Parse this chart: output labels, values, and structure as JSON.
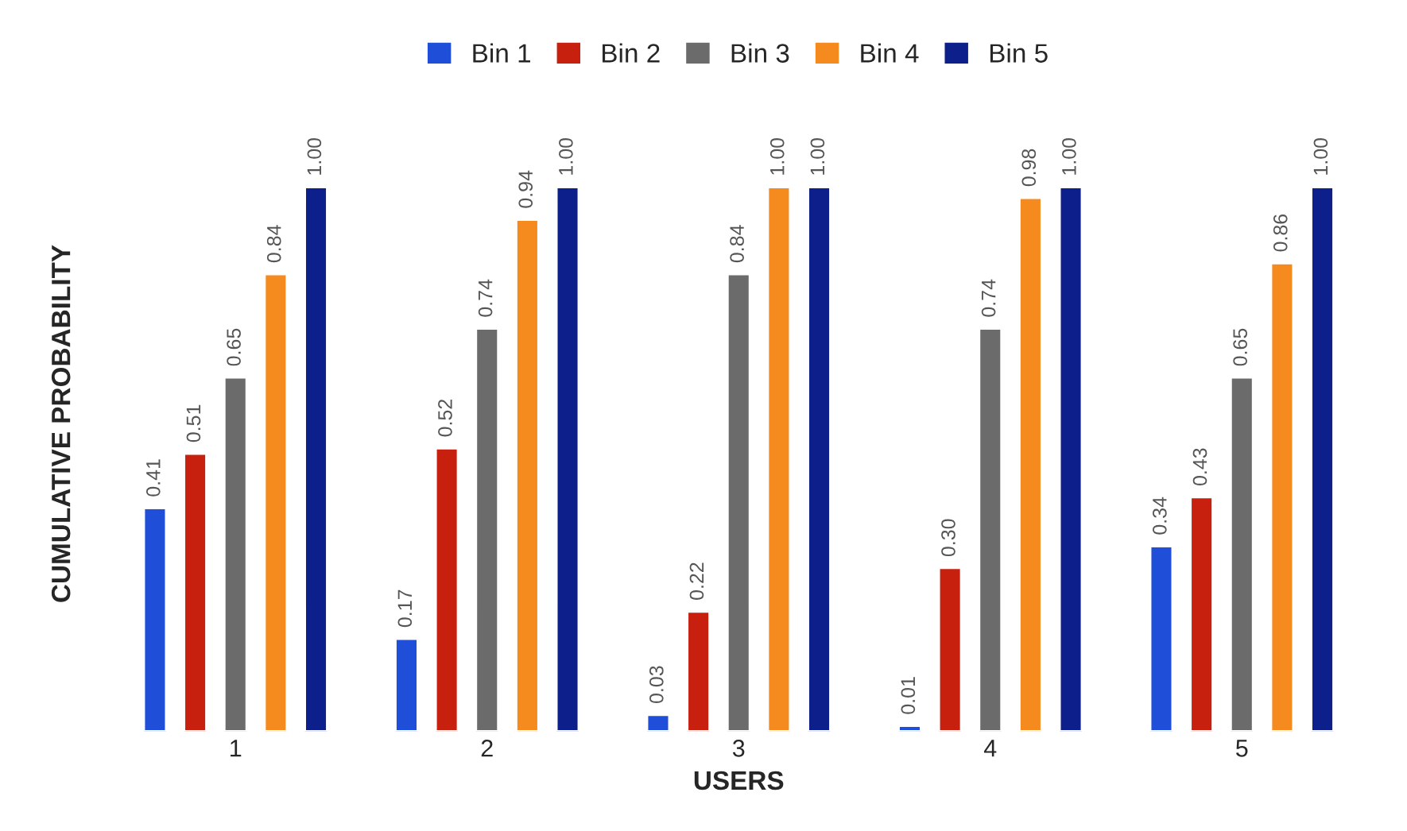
{
  "chart_data": {
    "type": "bar",
    "xlabel": "USERS",
    "ylabel": "CUMULATIVE PROBABILITY",
    "categories": [
      "1",
      "2",
      "3",
      "4",
      "5"
    ],
    "series": [
      {
        "name": "Bin 1",
        "color": "#1f4fd8",
        "values": [
          0.41,
          0.17,
          0.03,
          0.01,
          0.34
        ],
        "value_labels": [
          "0.41",
          "0.17",
          "0.03",
          "0.01",
          "0.34"
        ]
      },
      {
        "name": "Bin 2",
        "color": "#c8200e",
        "values": [
          0.51,
          0.52,
          0.22,
          0.3,
          0.43
        ],
        "value_labels": [
          "0.51",
          "0.52",
          "0.22",
          "0.30",
          "0.43"
        ]
      },
      {
        "name": "Bin 3",
        "color": "#6b6b6b",
        "values": [
          0.65,
          0.74,
          0.84,
          0.74,
          0.65
        ],
        "value_labels": [
          "0.65",
          "0.74",
          "0.84",
          "0.74",
          "0.65"
        ]
      },
      {
        "name": "Bin 4",
        "color": "#f58a1f",
        "values": [
          0.84,
          0.94,
          1.0,
          0.98,
          0.86
        ],
        "value_labels": [
          "0.84",
          "0.94",
          "1.00",
          "0.98",
          "0.86"
        ]
      },
      {
        "name": "Bin 5",
        "color": "#0d1f8a",
        "values": [
          1.0,
          1.0,
          1.0,
          1.0,
          1.0
        ],
        "value_labels": [
          "1.00",
          "1.00",
          "1.00",
          "1.00",
          "1.00"
        ]
      }
    ],
    "legend": "top"
  }
}
